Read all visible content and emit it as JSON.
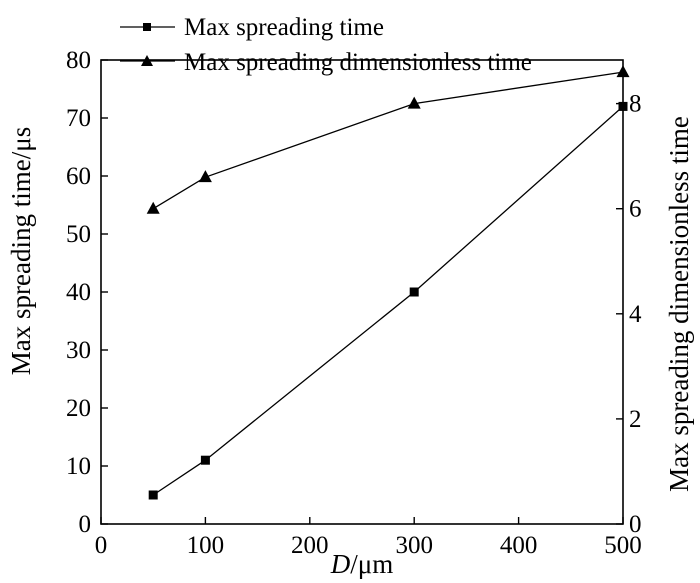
{
  "chart_data": {
    "type": "line",
    "title": "",
    "xlabel_italic": "D",
    "xlabel_rest": "/μm",
    "ylabel": "Max spreading time/μs",
    "y2label": "Max spreading dimensionless time",
    "xlim": [
      0,
      500
    ],
    "ylim": [
      0,
      80
    ],
    "y2lim": [
      0,
      8.83
    ],
    "xticks": [
      "0",
      "100",
      "200",
      "300",
      "400",
      "500"
    ],
    "yticks": [
      "0",
      "10",
      "20",
      "30",
      "40",
      "50",
      "60",
      "70",
      "80"
    ],
    "y2ticks": [
      "0",
      "2",
      "4",
      "6",
      "8"
    ],
    "grid": false,
    "legend_position": "top-left",
    "series": [
      {
        "name": "Max spreading time",
        "axis": "left",
        "marker": "square",
        "x": [
          50,
          100,
          300,
          500
        ],
        "values": [
          5,
          11,
          40,
          72
        ]
      },
      {
        "name": "Max spreading dimensionless time",
        "axis": "right",
        "marker": "triangle",
        "x": [
          50,
          100,
          300,
          500
        ],
        "values": [
          6.0,
          6.6,
          8.0,
          8.6
        ]
      }
    ]
  }
}
